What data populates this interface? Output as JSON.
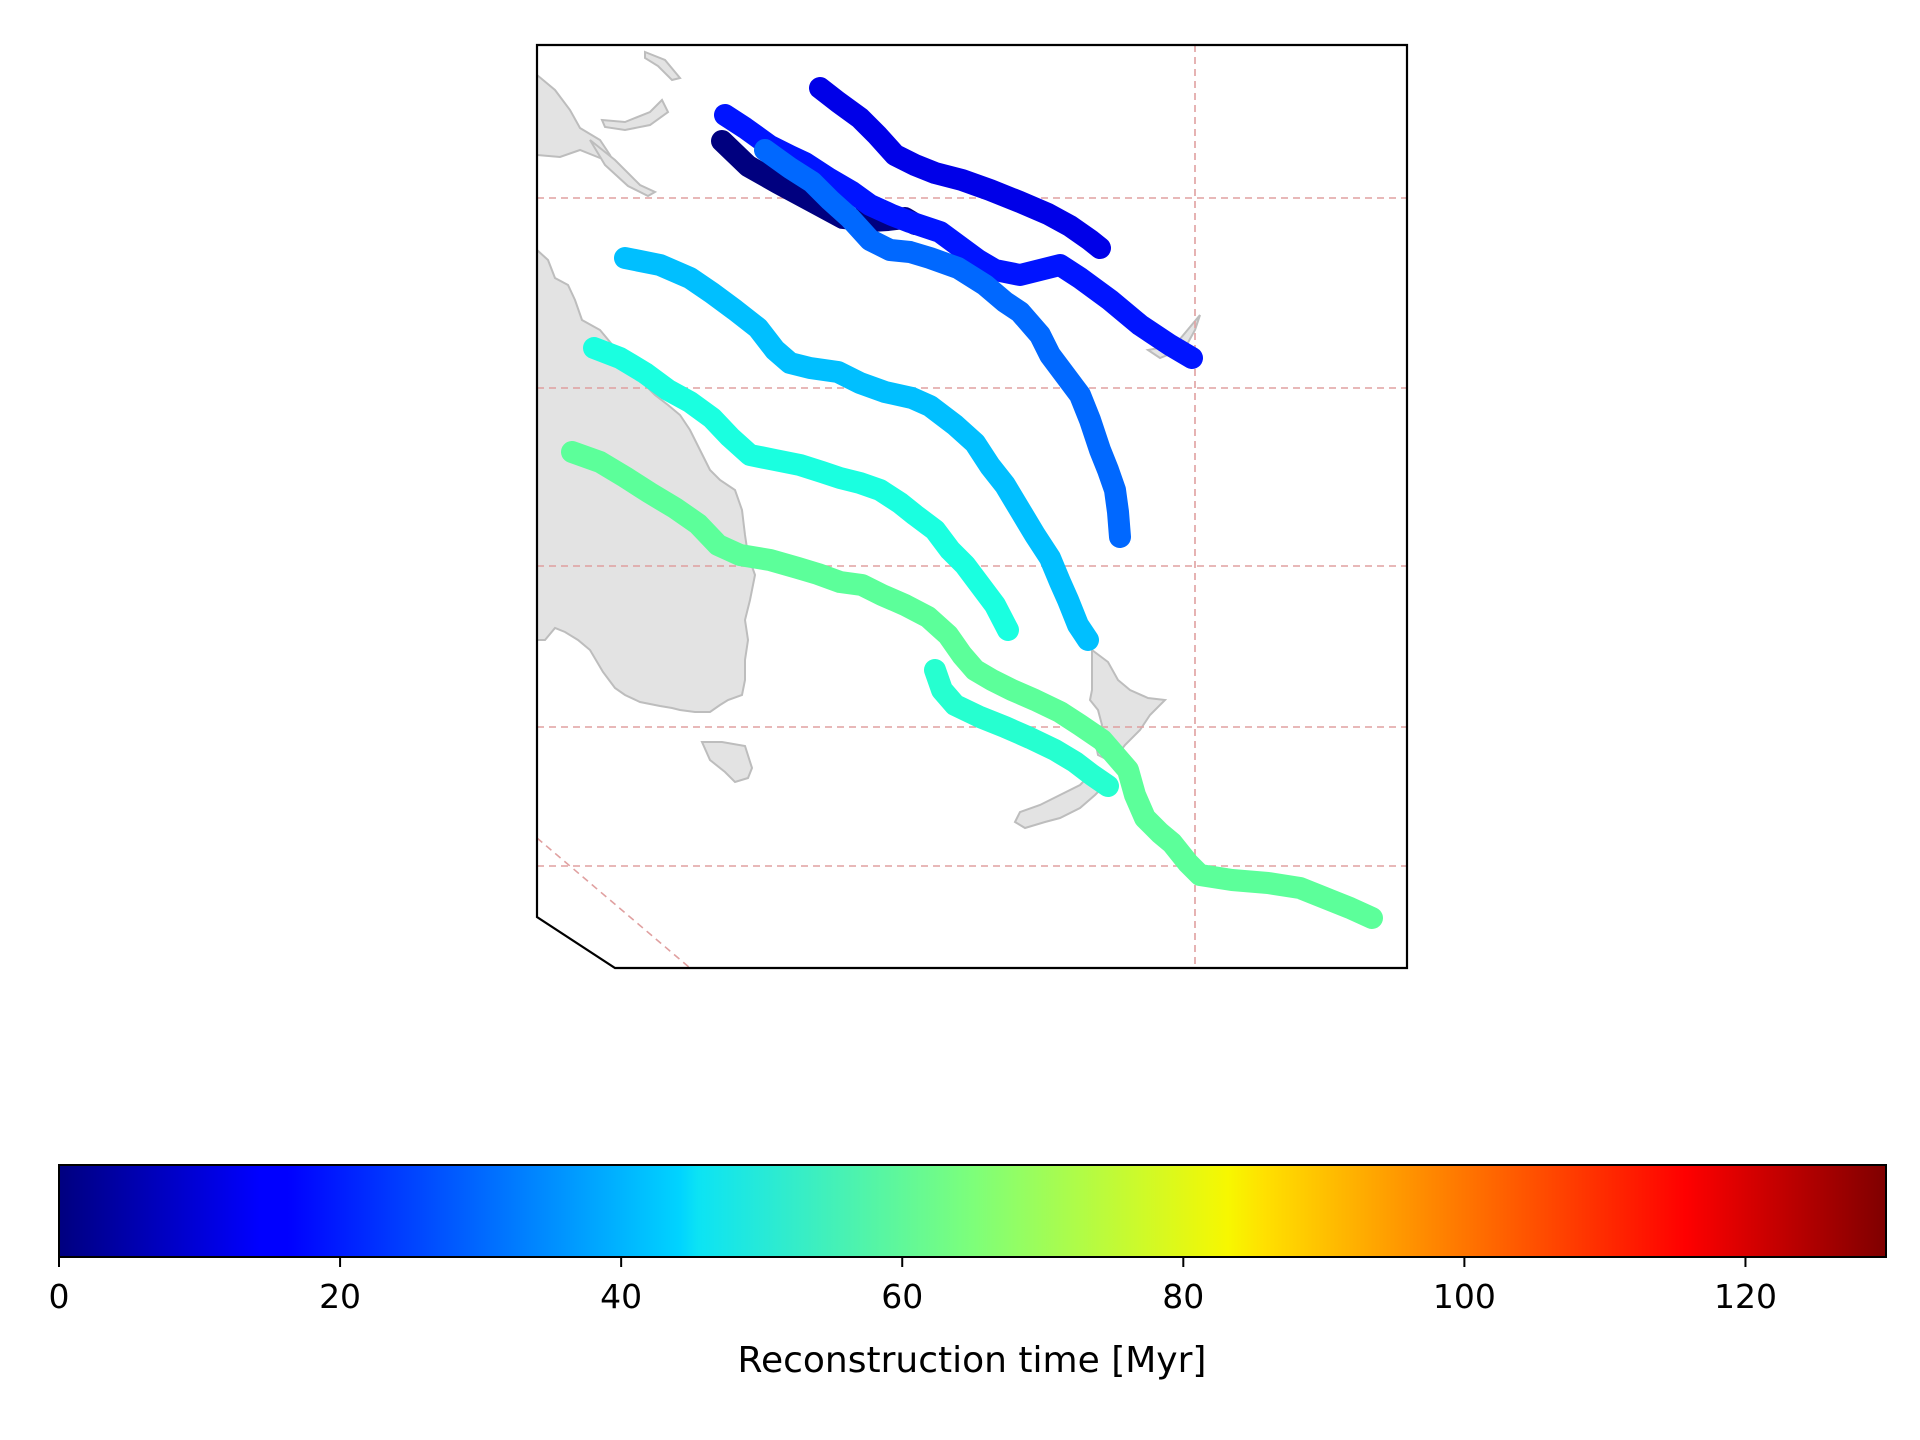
{
  "map": {
    "land_color": "#e3e3e3",
    "coast_color": "#bdbdbd",
    "grid_color": "#e0a0a0",
    "frame_color": "#000000"
  },
  "tracks": [
    {
      "time_myr": 0,
      "color": "#00007f"
    },
    {
      "time_myr": 15,
      "color": "#0000e8"
    },
    {
      "time_myr": 20,
      "color": "#0014ff"
    },
    {
      "time_myr": 30,
      "color": "#0068ff"
    },
    {
      "time_myr": 42,
      "color": "#00bfff"
    },
    {
      "time_myr": 50,
      "color": "#1affe0"
    },
    {
      "time_myr": 48,
      "color": "#26ffd0"
    },
    {
      "time_myr": 58,
      "color": "#5cff9a"
    }
  ],
  "colorbar": {
    "cmap": "jet",
    "min": 0,
    "max": 130,
    "ticks": [
      "0",
      "20",
      "40",
      "60",
      "80",
      "100",
      "120"
    ],
    "tick_values": [
      0,
      20,
      40,
      60,
      80,
      100,
      120
    ],
    "label": "Reconstruction time [Myr]"
  }
}
